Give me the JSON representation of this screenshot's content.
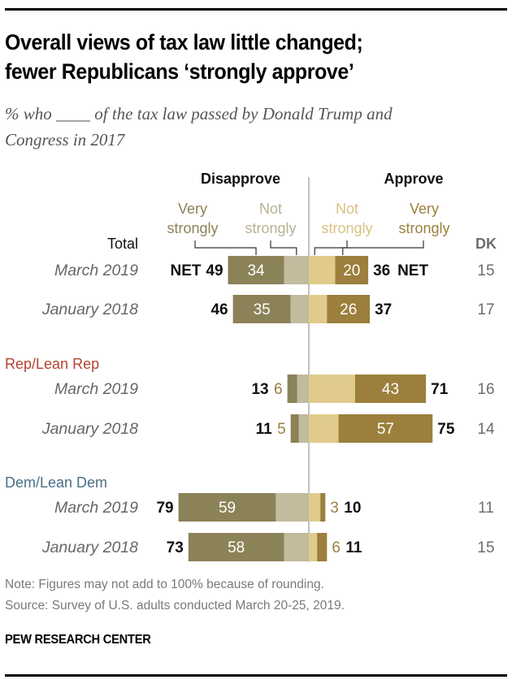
{
  "header": {
    "title_line1": "Overall views of tax law little changed;",
    "title_line2": "fewer Republicans ‘strongly approve’",
    "subtitle_line1": "% who ____ of the tax law passed by Donald Trump and",
    "subtitle_line2": "Congress in 2017"
  },
  "footer": {
    "note": "Note: Figures may not add to 100% because of rounding.",
    "source": "Source: Survey of U.S. adults conducted March 20-25, 2019.",
    "brand": "PEW RESEARCH CENTER"
  },
  "colors": {
    "very_disapprove": "#8c8258",
    "not_disapprove": "#c2bb9e",
    "not_approve": "#e0cb8c",
    "very_approve": "#9c7f3c",
    "rep": "#b5432f",
    "dem": "#4a6e86",
    "dk": "#6d6e71"
  },
  "chart_data": {
    "type": "bar",
    "orientation": "horizontal-diverging",
    "title": "Overall views of tax law little changed; fewer Republicans ‘strongly approve’",
    "subtitle": "% who ____ of the tax law passed by Donald Trump and Congress in 2017",
    "side_labels": {
      "left": "Disapprove",
      "right": "Approve"
    },
    "legend": [
      {
        "key": "very_disapprove",
        "line1": "Very",
        "line2": "strongly"
      },
      {
        "key": "not_disapprove",
        "line1": "Not",
        "line2": "strongly"
      },
      {
        "key": "not_approve",
        "line1": "Not",
        "line2": "strongly"
      },
      {
        "key": "very_approve",
        "line1": "Very",
        "line2": "strongly"
      }
    ],
    "net_label": "NET",
    "dk_header": "DK",
    "groups": [
      {
        "name": "Total",
        "rows": [
          {
            "label": "March 2019",
            "disapprove_net": 49,
            "very_disapprove": 34,
            "not_disapprove": 15,
            "not_approve": 16,
            "very_approve": 20,
            "approve_net": 36,
            "dk": 15,
            "show_net": true,
            "label_very_disapprove": "34",
            "label_very_approve": "20"
          },
          {
            "label": "January 2018",
            "disapprove_net": 46,
            "very_disapprove": 35,
            "not_disapprove": 11,
            "not_approve": 11,
            "very_approve": 26,
            "approve_net": 37,
            "dk": 17,
            "show_net": false,
            "label_very_disapprove": "35",
            "label_very_approve": "26"
          }
        ]
      },
      {
        "name": "Rep/Lean Rep",
        "rows": [
          {
            "label": "March 2019",
            "disapprove_net": 13,
            "very_disapprove": 6,
            "not_disapprove": 7,
            "not_approve": 28,
            "very_approve": 43,
            "approve_net": 71,
            "dk": 16,
            "show_net": false,
            "outside_very_disapprove": "6",
            "label_very_approve": "43"
          },
          {
            "label": "January 2018",
            "disapprove_net": 11,
            "very_disapprove": 5,
            "not_disapprove": 6,
            "not_approve": 18,
            "very_approve": 57,
            "approve_net": 75,
            "dk": 14,
            "show_net": false,
            "outside_very_disapprove": "5",
            "label_very_approve": "57"
          }
        ]
      },
      {
        "name": "Dem/Lean Dem",
        "rows": [
          {
            "label": "March 2019",
            "disapprove_net": 79,
            "very_disapprove": 59,
            "not_disapprove": 20,
            "not_approve": 7,
            "very_approve": 3,
            "approve_net": 10,
            "dk": 11,
            "show_net": false,
            "label_very_disapprove": "59",
            "outside_very_approve": "3"
          },
          {
            "label": "January 2018",
            "disapprove_net": 73,
            "very_disapprove": 58,
            "not_disapprove": 15,
            "not_approve": 5,
            "very_approve": 6,
            "approve_net": 11,
            "dk": 15,
            "show_net": false,
            "label_very_disapprove": "58",
            "outside_very_approve": "6"
          }
        ]
      }
    ]
  }
}
